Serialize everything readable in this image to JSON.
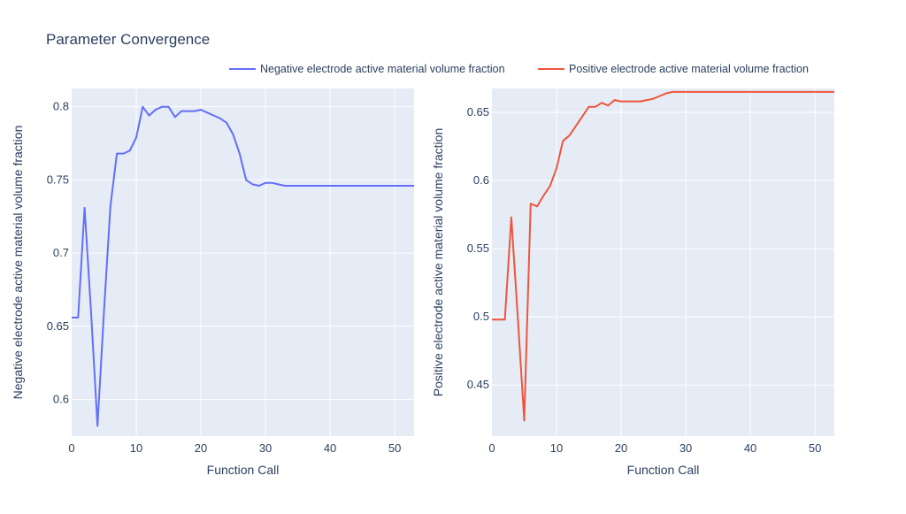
{
  "title": "Parameter Convergence",
  "legend": {
    "placement": "top-right",
    "entries": [
      {
        "label": "Negative electrode active material volume fraction",
        "color": "#636efa"
      },
      {
        "label": "Positive electrode active material volume fraction",
        "color": "#ef553b"
      }
    ]
  },
  "chart_data": [
    {
      "type": "line",
      "xlabel": "Function Call",
      "ylabel": "Negative electrode active material volume fraction",
      "xlim": [
        0,
        53
      ],
      "ylim": [
        0.575,
        0.8125
      ],
      "xticks": [
        "0",
        "10",
        "20",
        "30",
        "40",
        "50"
      ],
      "yticks": [
        "0.6",
        "0.65",
        "0.7",
        "0.75",
        "0.8"
      ],
      "grid": true,
      "series": [
        {
          "name": "Negative electrode active material volume fraction",
          "color": "#636efa",
          "x": [
            0,
            1,
            2,
            3,
            4,
            5,
            6,
            7,
            8,
            9,
            10,
            11,
            12,
            13,
            14,
            15,
            16,
            17,
            18,
            19,
            20,
            21,
            22,
            23,
            24,
            25,
            26,
            27,
            28,
            29,
            30,
            31,
            32,
            33,
            34,
            35,
            36,
            37,
            38,
            39,
            40,
            41,
            42,
            43,
            44,
            45,
            46,
            47,
            48,
            49,
            50,
            51,
            52,
            53
          ],
          "y": [
            0.656,
            0.656,
            0.731,
            0.66,
            0.582,
            0.66,
            0.732,
            0.768,
            0.768,
            0.77,
            0.779,
            0.8,
            0.794,
            0.798,
            0.8,
            0.8,
            0.793,
            0.797,
            0.797,
            0.797,
            0.798,
            0.796,
            0.794,
            0.792,
            0.789,
            0.781,
            0.768,
            0.75,
            0.747,
            0.746,
            0.748,
            0.748,
            0.747,
            0.746,
            0.746,
            0.746,
            0.746,
            0.746,
            0.746,
            0.746,
            0.746,
            0.746,
            0.746,
            0.746,
            0.746,
            0.746,
            0.746,
            0.746,
            0.746,
            0.746,
            0.746,
            0.746,
            0.746,
            0.746
          ]
        }
      ]
    },
    {
      "type": "line",
      "xlabel": "Function Call",
      "ylabel": "Positive electrode active material volume fraction",
      "xlim": [
        0,
        53
      ],
      "ylim": [
        0.4125,
        0.6675
      ],
      "xticks": [
        "0",
        "10",
        "20",
        "30",
        "40",
        "50"
      ],
      "yticks": [
        "0.45",
        "0.5",
        "0.55",
        "0.6",
        "0.65"
      ],
      "grid": true,
      "series": [
        {
          "name": "Positive electrode active material volume fraction",
          "color": "#ef553b",
          "x": [
            0,
            1,
            2,
            3,
            4,
            5,
            6,
            7,
            8,
            9,
            10,
            11,
            12,
            13,
            14,
            15,
            16,
            17,
            18,
            19,
            20,
            21,
            22,
            23,
            24,
            25,
            26,
            27,
            28,
            29,
            30,
            31,
            32,
            33,
            34,
            35,
            36,
            37,
            38,
            39,
            40,
            41,
            42,
            43,
            44,
            45,
            46,
            47,
            48,
            49,
            50,
            51,
            52,
            53
          ],
          "y": [
            0.498,
            0.498,
            0.498,
            0.573,
            0.5,
            0.424,
            0.583,
            0.581,
            0.589,
            0.596,
            0.609,
            0.629,
            0.633,
            0.64,
            0.647,
            0.654,
            0.654,
            0.657,
            0.655,
            0.659,
            0.658,
            0.658,
            0.658,
            0.658,
            0.659,
            0.66,
            0.662,
            0.664,
            0.665,
            0.665,
            0.665,
            0.665,
            0.665,
            0.665,
            0.665,
            0.665,
            0.665,
            0.665,
            0.665,
            0.665,
            0.665,
            0.665,
            0.665,
            0.665,
            0.665,
            0.665,
            0.665,
            0.665,
            0.665,
            0.665,
            0.665,
            0.665,
            0.665,
            0.665
          ]
        }
      ]
    }
  ]
}
